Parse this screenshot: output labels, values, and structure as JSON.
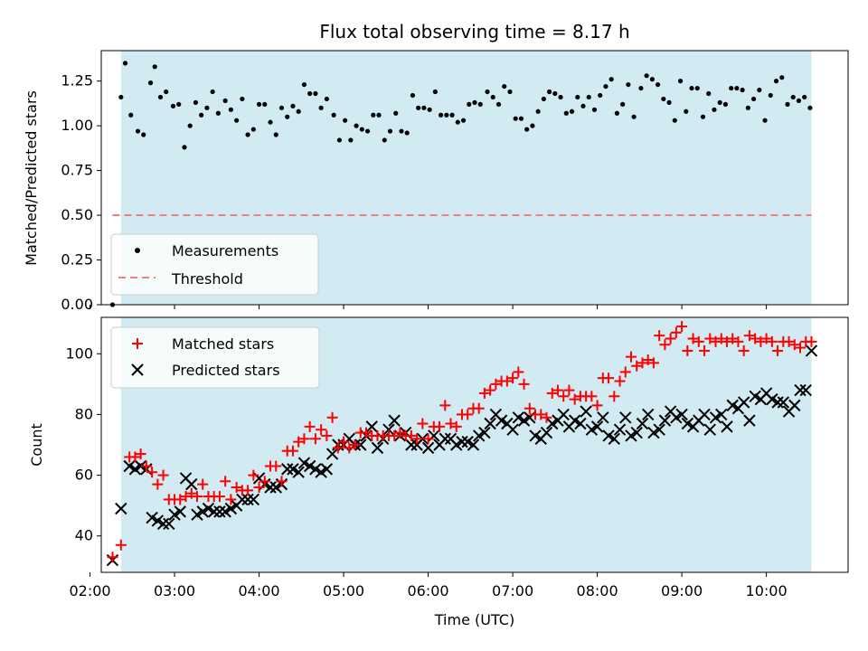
{
  "chart_data": [
    {
      "type": "scatter",
      "title": "Flux total observing time = 8.17 h",
      "xlabel": "",
      "ylabel": "Matched/Predicted stars",
      "ylim": [
        0.0,
        1.42
      ],
      "xlim": [
        "02:08",
        "10:58"
      ],
      "yticks": [
        "0.00",
        "0.25",
        "0.50",
        "0.75",
        "1.00",
        "1.25"
      ],
      "shaded_span": {
        "start": "02:22",
        "end": "10:32",
        "color": "#add8e6"
      },
      "legend": {
        "position": "lower-left",
        "entries": [
          "Measurements",
          "Threshold"
        ]
      },
      "series": [
        {
          "name": "Measurements",
          "marker": "dot",
          "color": "#000000",
          "x": [
            "02:16",
            "02:22",
            "02:25",
            "02:29",
            "02:34",
            "02:38",
            "02:43",
            "02:46",
            "02:50",
            "02:54",
            "02:59",
            "03:03",
            "03:07",
            "03:11",
            "03:15",
            "03:19",
            "03:23",
            "03:27",
            "03:31",
            "03:36",
            "03:40",
            "03:44",
            "03:48",
            "03:52",
            "03:56",
            "04:00",
            "04:04",
            "04:08",
            "04:12",
            "04:16",
            "04:20",
            "04:24",
            "04:28",
            "04:32",
            "04:36",
            "04:40",
            "04:44",
            "04:48",
            "04:53",
            "04:57",
            "05:01",
            "05:05",
            "05:09",
            "05:13",
            "05:17",
            "05:21",
            "05:25",
            "05:29",
            "05:33",
            "05:37",
            "05:41",
            "05:45",
            "05:49",
            "05:53",
            "05:57",
            "06:01",
            "06:05",
            "06:09",
            "06:13",
            "06:17",
            "06:21",
            "06:25",
            "06:29",
            "06:33",
            "06:37",
            "06:42",
            "06:46",
            "06:50",
            "06:54",
            "06:58",
            "07:02",
            "07:06",
            "07:10",
            "07:14",
            "07:18",
            "07:22",
            "07:26",
            "07:30",
            "07:34",
            "07:38",
            "07:42",
            "07:46",
            "07:50",
            "07:54",
            "07:58",
            "08:02",
            "08:06",
            "08:10",
            "08:14",
            "08:18",
            "08:22",
            "08:26",
            "08:31",
            "08:35",
            "08:39",
            "08:43",
            "08:47",
            "08:51",
            "08:55",
            "08:59",
            "09:03",
            "09:07",
            "09:11",
            "09:15",
            "09:19",
            "09:23",
            "09:27",
            "09:31",
            "09:35",
            "09:39",
            "09:43",
            "09:47",
            "09:51",
            "09:55",
            "09:59",
            "10:03",
            "10:07",
            "10:11",
            "10:15",
            "10:19",
            "10:23",
            "10:27",
            "10:31"
          ],
          "y": [
            0.0,
            1.16,
            1.35,
            1.06,
            0.97,
            0.95,
            1.24,
            1.33,
            1.16,
            1.19,
            1.11,
            1.12,
            0.88,
            1.0,
            1.13,
            1.06,
            1.1,
            1.19,
            1.07,
            1.14,
            1.09,
            1.03,
            1.15,
            0.95,
            0.98,
            1.12,
            1.12,
            1.02,
            0.95,
            1.1,
            1.05,
            1.11,
            1.08,
            1.23,
            1.18,
            1.18,
            1.1,
            1.15,
            1.06,
            0.92,
            1.03,
            0.92,
            1.0,
            0.98,
            0.97,
            1.06,
            1.06,
            0.92,
            0.97,
            1.07,
            0.97,
            0.96,
            1.17,
            1.1,
            1.1,
            1.09,
            1.19,
            1.06,
            1.06,
            1.06,
            1.02,
            1.03,
            1.12,
            1.13,
            1.12,
            1.19,
            1.16,
            1.12,
            1.22,
            1.19,
            1.04,
            1.04,
            0.98,
            1.0,
            1.08,
            1.15,
            1.19,
            1.18,
            1.16,
            1.07,
            1.08,
            1.16,
            1.11,
            1.16,
            1.09,
            1.17,
            1.22,
            1.26,
            1.07,
            1.12,
            1.23,
            1.05,
            1.21,
            1.28,
            1.26,
            1.23,
            1.15,
            1.13,
            1.03,
            1.25,
            1.08,
            1.21,
            1.21,
            1.05,
            1.18,
            1.09,
            1.13,
            1.12,
            1.21,
            1.21,
            1.2,
            1.1,
            1.15,
            1.2,
            1.03,
            1.17,
            1.25,
            1.27,
            1.12,
            1.16,
            1.14,
            1.16,
            1.1
          ]
        },
        {
          "name": "Threshold",
          "marker": "dashed-line",
          "color": "#f08080",
          "x": [
            "02:16",
            "10:32"
          ],
          "y": [
            0.5,
            0.5
          ]
        }
      ]
    },
    {
      "type": "scatter",
      "title": "",
      "xlabel": "Time (UTC)",
      "ylabel": "Count",
      "ylim": [
        28,
        112
      ],
      "xlim": [
        "02:08",
        "10:58"
      ],
      "xticks": [
        "02:00",
        "03:00",
        "04:00",
        "05:00",
        "06:00",
        "07:00",
        "08:00",
        "09:00",
        "10:00"
      ],
      "yticks": [
        "40",
        "60",
        "80",
        "100"
      ],
      "shaded_span": {
        "start": "02:22",
        "end": "10:32",
        "color": "#add8e6"
      },
      "legend": {
        "position": "upper-left",
        "entries": [
          "Matched stars",
          "Predicted stars"
        ]
      },
      "series": [
        {
          "name": "Matched stars",
          "marker": "plus",
          "color": "#ff0000",
          "x": [
            "02:16",
            "02:22",
            "02:28",
            "02:32",
            "02:36",
            "02:40",
            "02:44",
            "02:48",
            "02:52",
            "02:56",
            "03:00",
            "03:04",
            "03:08",
            "03:12",
            "03:16",
            "03:20",
            "03:24",
            "03:28",
            "03:32",
            "03:36",
            "03:40",
            "03:44",
            "03:48",
            "03:52",
            "03:56",
            "04:00",
            "04:04",
            "04:08",
            "04:12",
            "04:16",
            "04:20",
            "04:24",
            "04:28",
            "04:32",
            "04:36",
            "04:40",
            "04:44",
            "04:48",
            "04:52",
            "04:56",
            "05:00",
            "05:04",
            "05:08",
            "05:12",
            "05:16",
            "05:20",
            "05:24",
            "05:28",
            "05:32",
            "05:36",
            "05:40",
            "05:44",
            "05:48",
            "05:52",
            "05:56",
            "06:00",
            "06:04",
            "06:08",
            "06:12",
            "06:16",
            "06:20",
            "06:24",
            "06:28",
            "06:32",
            "06:36",
            "06:40",
            "06:44",
            "06:48",
            "06:52",
            "06:56",
            "07:00",
            "07:04",
            "07:08",
            "07:12",
            "07:16",
            "07:20",
            "07:24",
            "07:28",
            "07:32",
            "07:36",
            "07:40",
            "07:44",
            "07:48",
            "07:52",
            "07:56",
            "08:00",
            "08:04",
            "08:08",
            "08:12",
            "08:16",
            "08:20",
            "08:24",
            "08:28",
            "08:32",
            "08:36",
            "08:40",
            "08:44",
            "08:48",
            "08:52",
            "08:56",
            "09:00",
            "09:04",
            "09:08",
            "09:12",
            "09:16",
            "09:20",
            "09:24",
            "09:28",
            "09:32",
            "09:36",
            "09:40",
            "09:44",
            "09:48",
            "09:52",
            "09:56",
            "10:00",
            "10:04",
            "10:08",
            "10:12",
            "10:16",
            "10:20",
            "10:24",
            "10:28",
            "10:32"
          ],
          "y": [
            33,
            37,
            66,
            66,
            67,
            63,
            61,
            57,
            60,
            52,
            52,
            52,
            53,
            54,
            53,
            57,
            53,
            53,
            53,
            58,
            52,
            56,
            55,
            55,
            60,
            56,
            58,
            63,
            63,
            58,
            68,
            68,
            71,
            72,
            76,
            72,
            75,
            73,
            79,
            69,
            71,
            69,
            70,
            74,
            74,
            73,
            73,
            73,
            73,
            73,
            74,
            73,
            73,
            72,
            77,
            72,
            76,
            76,
            83,
            77,
            76,
            80,
            80,
            82,
            82,
            87,
            88,
            90,
            91,
            91,
            92,
            94,
            90,
            82,
            80,
            80,
            79,
            87,
            88,
            86,
            88,
            85,
            86,
            86,
            86,
            83,
            92,
            92,
            86,
            91,
            94,
            99,
            96,
            97,
            98,
            97,
            106,
            103,
            105,
            107,
            109,
            101,
            105,
            104,
            101,
            105,
            104,
            105,
            104,
            105,
            104,
            101,
            106,
            105,
            104,
            105,
            104,
            101,
            104,
            104,
            103,
            102,
            104,
            104
          ]
        },
        {
          "name": "Predicted stars",
          "marker": "x",
          "color": "#000000",
          "x": [
            "02:16",
            "02:22",
            "02:28",
            "02:32",
            "02:36",
            "02:40",
            "02:44",
            "02:48",
            "02:52",
            "02:56",
            "03:00",
            "03:04",
            "03:08",
            "03:12",
            "03:16",
            "03:20",
            "03:24",
            "03:28",
            "03:32",
            "03:36",
            "03:40",
            "03:44",
            "03:48",
            "03:52",
            "03:56",
            "04:00",
            "04:04",
            "04:08",
            "04:12",
            "04:16",
            "04:20",
            "04:24",
            "04:28",
            "04:32",
            "04:36",
            "04:40",
            "04:44",
            "04:48",
            "04:52",
            "04:56",
            "05:00",
            "05:04",
            "05:08",
            "05:12",
            "05:16",
            "05:20",
            "05:24",
            "05:28",
            "05:32",
            "05:36",
            "05:40",
            "05:44",
            "05:48",
            "05:52",
            "05:56",
            "06:00",
            "06:04",
            "06:08",
            "06:12",
            "06:16",
            "06:20",
            "06:24",
            "06:28",
            "06:32",
            "06:36",
            "06:40",
            "06:44",
            "06:48",
            "06:52",
            "06:56",
            "07:00",
            "07:04",
            "07:08",
            "07:12",
            "07:16",
            "07:20",
            "07:24",
            "07:28",
            "07:32",
            "07:36",
            "07:40",
            "07:44",
            "07:48",
            "07:52",
            "07:56",
            "08:00",
            "08:04",
            "08:08",
            "08:12",
            "08:16",
            "08:20",
            "08:24",
            "08:28",
            "08:32",
            "08:36",
            "08:40",
            "08:44",
            "08:48",
            "08:52",
            "08:56",
            "09:00",
            "09:04",
            "09:08",
            "09:12",
            "09:16",
            "09:20",
            "09:24",
            "09:28",
            "09:32",
            "09:36",
            "09:40",
            "09:44",
            "09:48",
            "09:52",
            "09:56",
            "10:00",
            "10:04",
            "10:08",
            "10:12",
            "10:16",
            "10:20",
            "10:24",
            "10:28",
            "10:32"
          ],
          "y": [
            32,
            49,
            63,
            62,
            63,
            62,
            46,
            45,
            44,
            44,
            47,
            48,
            59,
            57,
            47,
            48,
            49,
            48,
            48,
            48,
            49,
            50,
            52,
            52,
            52,
            59,
            57,
            56,
            56,
            57,
            62,
            62,
            61,
            64,
            63,
            62,
            61,
            62,
            67,
            70,
            70,
            72,
            70,
            70,
            73,
            76,
            69,
            72,
            75,
            78,
            73,
            74,
            70,
            70,
            72,
            69,
            73,
            70,
            72,
            72,
            70,
            71,
            71,
            70,
            73,
            74,
            77,
            80,
            78,
            77,
            75,
            79,
            78,
            79,
            73,
            72,
            74,
            77,
            78,
            80,
            76,
            78,
            77,
            81,
            75,
            76,
            79,
            73,
            72,
            75,
            79,
            73,
            74,
            77,
            80,
            74,
            75,
            78,
            81,
            79,
            80,
            77,
            76,
            78,
            80,
            75,
            79,
            80,
            76,
            83,
            82,
            84,
            78,
            86,
            85,
            87,
            85,
            84,
            84,
            81,
            83,
            88,
            88,
            101
          ]
        }
      ]
    }
  ]
}
